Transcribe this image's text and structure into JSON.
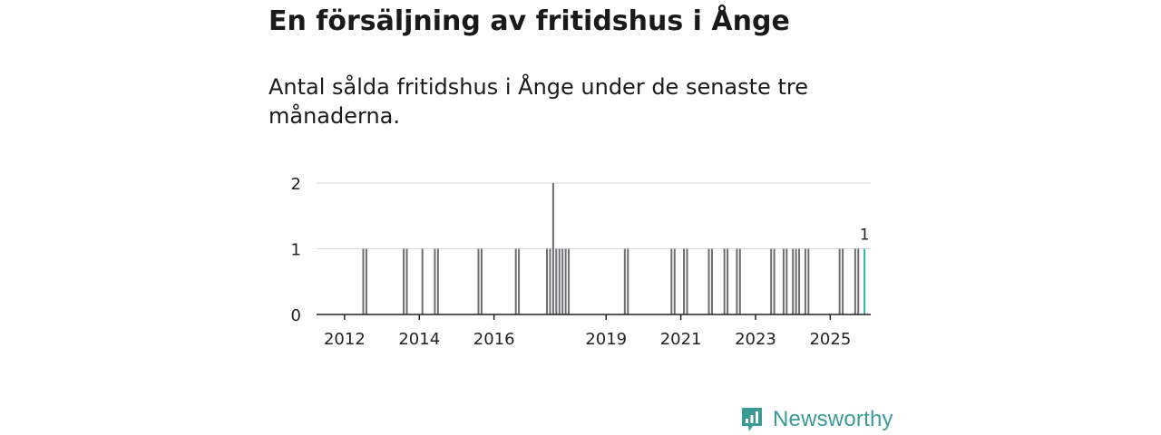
{
  "header": {
    "title": "En försäljning av fritidshus i Ånge",
    "subtitle": "Antal sålda fritidshus i Ånge under de senaste tre månaderna."
  },
  "branding": {
    "name": "Newsworthy",
    "color": "#3a9b96",
    "icon": "newsworthy-logo-icon"
  },
  "chart_data": {
    "type": "bar",
    "ylim": [
      0,
      2
    ],
    "xlim": [
      "2011-04",
      "2026-02"
    ],
    "yticks": [
      0,
      1,
      2
    ],
    "xtick_labels": [
      "2012",
      "2014",
      "2016",
      "2019",
      "2021",
      "2023",
      "2025"
    ],
    "grid": true,
    "bar_color": "#6e6e72",
    "highlight_color": "#2fb3aa",
    "annotation": {
      "x": "2025-12",
      "text": "1"
    },
    "series": [
      {
        "x": [
          "2012-07",
          "2012-08",
          "2013-08",
          "2013-09",
          "2014-02",
          "2014-06",
          "2014-07",
          "2015-08",
          "2015-09",
          "2016-08",
          "2016-09",
          "2017-06",
          "2017-07",
          "2017-08",
          "2017-09",
          "2017-10",
          "2017-11",
          "2017-12",
          "2018-01",
          "2019-07",
          "2019-08",
          "2020-10",
          "2020-11",
          "2021-02",
          "2021-03",
          "2021-10",
          "2021-11",
          "2022-03",
          "2022-04",
          "2022-07",
          "2022-08",
          "2023-06",
          "2023-07",
          "2023-10",
          "2023-11",
          "2024-01",
          "2024-02",
          "2024-03",
          "2024-05",
          "2024-06",
          "2025-04",
          "2025-05",
          "2025-09",
          "2025-10",
          "2025-12"
        ],
        "y": [
          1,
          1,
          1,
          1,
          1,
          1,
          1,
          1,
          1,
          1,
          1,
          1,
          1,
          2,
          1,
          1,
          1,
          1,
          1,
          1,
          1,
          1,
          1,
          1,
          1,
          1,
          1,
          1,
          1,
          1,
          1,
          1,
          1,
          1,
          1,
          1,
          1,
          1,
          1,
          1,
          1,
          1,
          1,
          1,
          1
        ]
      }
    ]
  }
}
